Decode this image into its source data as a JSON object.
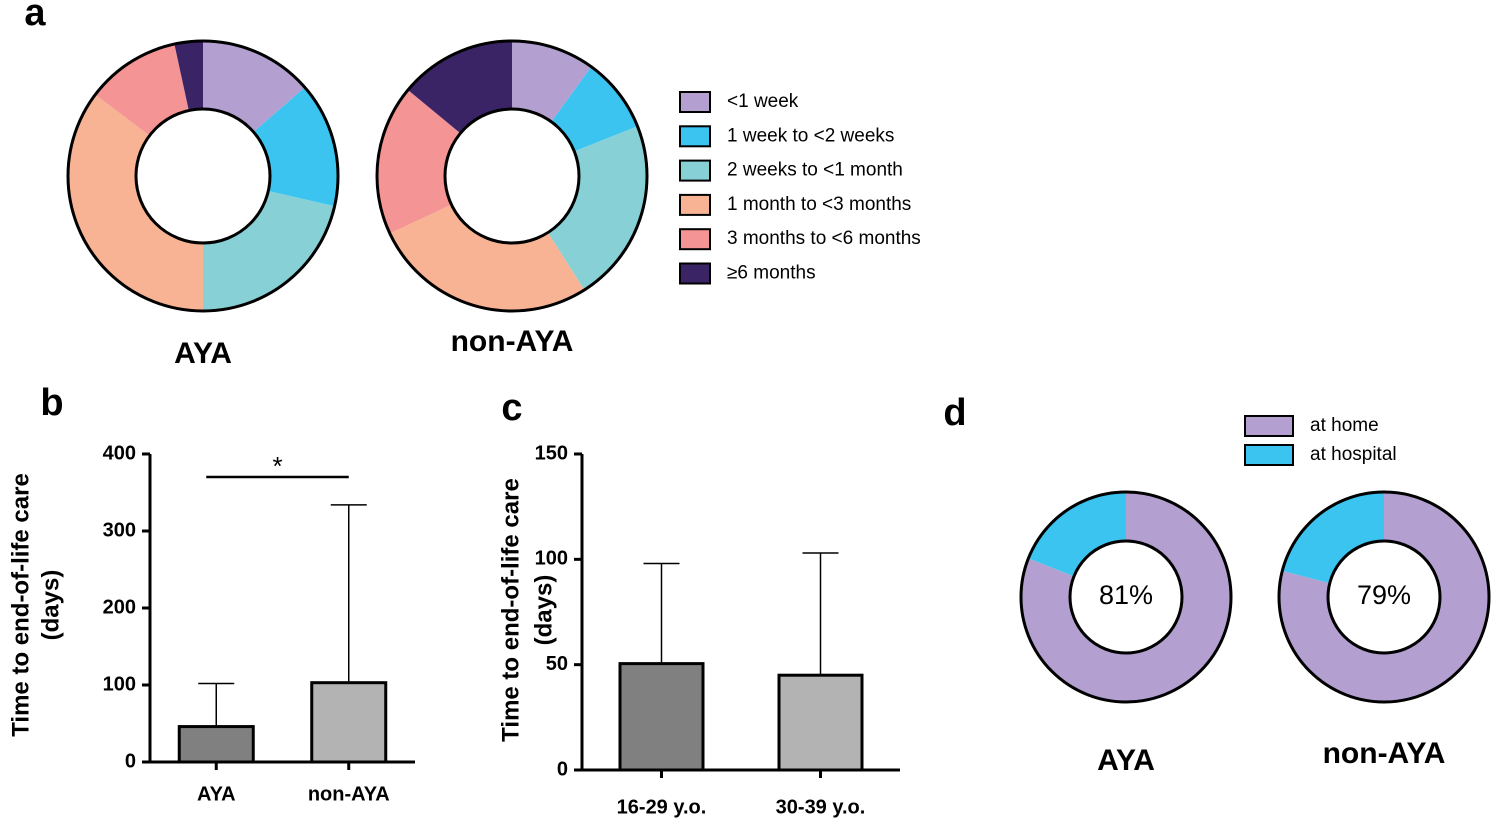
{
  "chart_data": [
    {
      "panel": "a",
      "type": "donut",
      "categories": [
        "<1 week",
        "1 week to <2 weeks",
        "2 weeks to <1 month",
        "1 month to <3 months",
        "3 months to <6 months",
        "≥6 months"
      ],
      "colors": [
        "#b3a0d0",
        "#3cc4f0",
        "#86d0d6",
        "#f8b394",
        "#f49494",
        "#3b2466"
      ],
      "series": [
        {
          "name": "AYA",
          "values": [
            13.6,
            15.0,
            21.4,
            35.3,
            11.3,
            3.4
          ]
        },
        {
          "name": "non-AYA",
          "values": [
            10,
            9,
            22,
            27,
            18,
            14
          ]
        }
      ]
    },
    {
      "panel": "b",
      "type": "bar",
      "ylabel": [
        "Time to end-of-life care",
        "(days)"
      ],
      "categories": [
        "AYA",
        "non-AYA"
      ],
      "values": [
        46,
        103
      ],
      "errors": [
        56,
        231
      ],
      "colors": [
        "#808080",
        "#b3b3b3"
      ],
      "ylim": [
        0,
        400
      ],
      "yticks": [
        0,
        100,
        200,
        300,
        400
      ],
      "significance": "*"
    },
    {
      "panel": "c",
      "type": "bar",
      "ylabel": [
        "Time to end-of-life care",
        "(days)"
      ],
      "categories": [
        "16-29 y.o.",
        "30-39 y.o."
      ],
      "values": [
        50.5,
        45
      ],
      "errors": [
        47.5,
        58
      ],
      "colors": [
        "#808080",
        "#b3b3b3"
      ],
      "ylim": [
        0,
        150
      ],
      "yticks": [
        0,
        50,
        100,
        150
      ]
    },
    {
      "panel": "d",
      "type": "donut",
      "categories": [
        "at home",
        "at hospital"
      ],
      "colors": [
        "#b3a0d0",
        "#3cc4f0"
      ],
      "series": [
        {
          "name": "AYA",
          "values": [
            81,
            19
          ],
          "value_labels": [
            "81%",
            null
          ]
        },
        {
          "name": "non-AYA",
          "values": [
            79,
            21
          ],
          "value_labels": [
            "79%",
            null
          ]
        }
      ]
    }
  ]
}
